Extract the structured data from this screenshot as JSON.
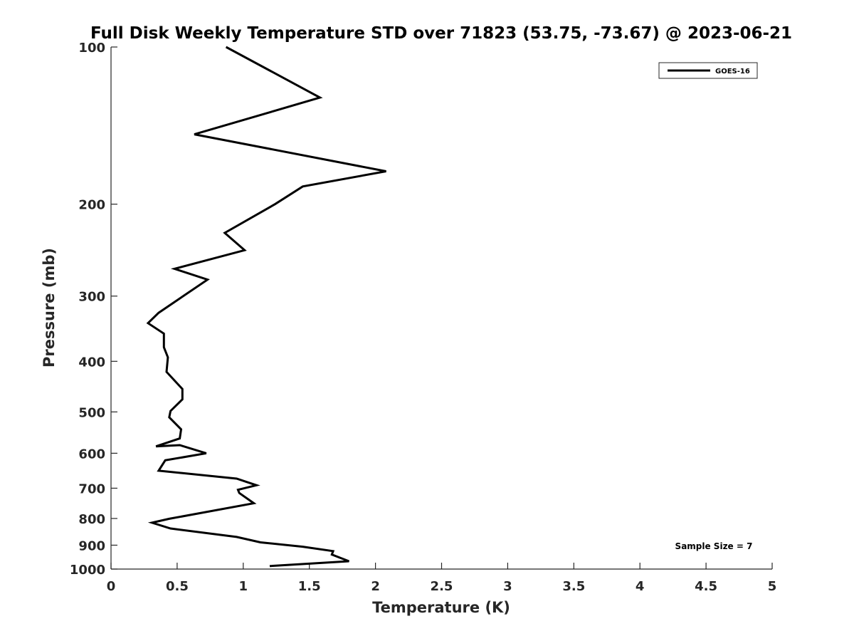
{
  "chart_data": {
    "type": "line",
    "title": "Full Disk Weekly Temperature STD over 71823 (53.75, -73.67) @ 2023-06-21",
    "xlabel": "Temperature (K)",
    "ylabel": "Pressure (mb)",
    "xlim": [
      0,
      5
    ],
    "ylim": [
      100,
      1000
    ],
    "y_scale": "log",
    "y_reversed": true,
    "x_ticks": [
      "0",
      "0.5",
      "1",
      "1.5",
      "2",
      "2.5",
      "3",
      "3.5",
      "4",
      "4.5",
      "5"
    ],
    "y_ticks": [
      "100",
      "200",
      "300",
      "400",
      "500",
      "600",
      "700",
      "800",
      "900",
      "1000"
    ],
    "grid": false,
    "legend_position": "top-right",
    "annotation": "Sample Size = 7",
    "series": [
      {
        "name": "GOES-16",
        "color": "#000000",
        "x": [
          0.87,
          1.58,
          0.63,
          2.08,
          1.45,
          1.24,
          0.86,
          1.01,
          0.48,
          0.73,
          0.36,
          0.28,
          0.4,
          0.4,
          0.43,
          0.42,
          0.54,
          0.54,
          0.45,
          0.44,
          0.53,
          0.52,
          0.34,
          0.52,
          0.72,
          0.41,
          0.36,
          0.95,
          1.1,
          0.96,
          0.97,
          1.08,
          0.44,
          0.31,
          0.45,
          0.95,
          1.13,
          1.45,
          1.68,
          1.67,
          1.8,
          1.2
        ],
        "y": [
          100,
          125,
          147,
          173,
          185,
          200,
          227,
          245,
          266,
          279,
          323,
          338,
          354,
          376,
          393,
          419,
          452,
          473,
          498,
          512,
          540,
          562,
          582,
          579,
          600,
          619,
          648,
          671,
          691,
          705,
          715,
          748,
          801,
          815,
          836,
          868,
          889,
          906,
          924,
          938,
          966,
          987
        ]
      }
    ]
  }
}
